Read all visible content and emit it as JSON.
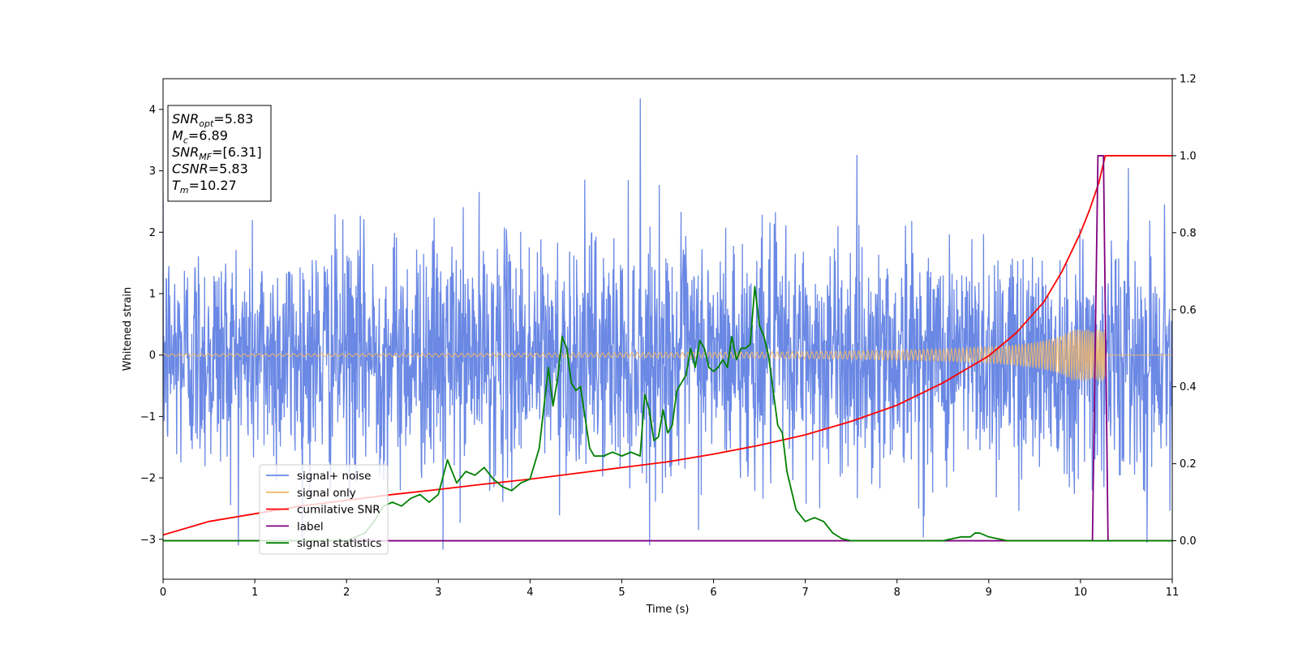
{
  "chart_data": {
    "type": "line",
    "xlabel": "Time (s)",
    "ylabel": "Whitened strain",
    "xlim": [
      0,
      11
    ],
    "ylim_left": [
      -3.65,
      4.5
    ],
    "ylim_right": [
      -0.1,
      1.2
    ],
    "xticks": [
      0,
      1,
      2,
      3,
      4,
      5,
      6,
      7,
      8,
      9,
      10,
      11
    ],
    "yticks_left": [
      -3,
      -2,
      -1,
      0,
      1,
      2,
      3,
      4
    ],
    "yticks_right": [
      0.0,
      0.2,
      0.4,
      0.6,
      0.8,
      1.0,
      1.2
    ],
    "yticks_right_labels": [
      "0.0",
      "0.2",
      "0.4",
      "0.6",
      "0.8",
      "1.0",
      "1.2"
    ],
    "grid": false,
    "legend_position": "lower-left",
    "info_box": {
      "lines": [
        {
          "main": "SNR",
          "sub": "opt",
          "value": "=5.83"
        },
        {
          "main": "M",
          "sub": "c",
          "value": "=6.89"
        },
        {
          "main": "SNR",
          "sub": "MF",
          "value": "=[6.31]"
        },
        {
          "main": "CSNR",
          "sub": "",
          "value": "=5.83"
        },
        {
          "main": "T",
          "sub": "m",
          "value": "=10.27"
        }
      ]
    },
    "series": [
      {
        "name": "signal+ noise",
        "axis": "left",
        "color": "#6a88e4",
        "kind": "noise",
        "std": 0.95,
        "samples": 2600,
        "peak_max": 4.18,
        "peak_min": -3.17
      },
      {
        "name": "signal only",
        "axis": "left",
        "color": "#f2b96a",
        "kind": "chirp",
        "t_merge": 10.27,
        "amp_end": 0.42
      },
      {
        "name": "cumilative SNR",
        "axis": "right",
        "color": "#ff0000",
        "x": [
          0,
          0.5,
          1,
          1.5,
          2,
          2.5,
          3,
          3.5,
          4,
          4.5,
          5,
          5.5,
          6,
          6.5,
          7,
          7.5,
          8,
          8.5,
          9,
          9.3,
          9.6,
          9.8,
          10.0,
          10.1,
          10.2,
          10.27,
          11
        ],
        "y": [
          0.015,
          0.05,
          0.07,
          0.09,
          0.105,
          0.12,
          0.133,
          0.147,
          0.16,
          0.175,
          0.19,
          0.205,
          0.225,
          0.248,
          0.275,
          0.31,
          0.352,
          0.41,
          0.48,
          0.54,
          0.62,
          0.7,
          0.8,
          0.86,
          0.93,
          1.0,
          1.0
        ]
      },
      {
        "name": "label",
        "axis": "right",
        "color": "#800080",
        "x": [
          0,
          10.13,
          10.19,
          10.25,
          10.3,
          11
        ],
        "y": [
          0.0,
          0.0,
          1.0,
          1.0,
          0.0,
          0.0
        ]
      },
      {
        "name": "signal statistics",
        "axis": "right",
        "color": "#008000",
        "x": [
          0,
          2.0,
          2.2,
          2.3,
          2.4,
          2.5,
          2.6,
          2.7,
          2.8,
          2.9,
          3.0,
          3.1,
          3.2,
          3.3,
          3.4,
          3.5,
          3.6,
          3.7,
          3.8,
          3.9,
          4.0,
          4.1,
          4.2,
          4.25,
          4.3,
          4.35,
          4.4,
          4.45,
          4.5,
          4.55,
          4.6,
          4.65,
          4.7,
          4.75,
          4.8,
          4.9,
          5.0,
          5.1,
          5.2,
          5.25,
          5.3,
          5.35,
          5.4,
          5.45,
          5.5,
          5.55,
          5.6,
          5.65,
          5.7,
          5.75,
          5.8,
          5.85,
          5.9,
          5.95,
          6.0,
          6.05,
          6.1,
          6.15,
          6.2,
          6.25,
          6.3,
          6.35,
          6.4,
          6.45,
          6.5,
          6.55,
          6.6,
          6.65,
          6.7,
          6.75,
          6.8,
          6.9,
          7.0,
          7.1,
          7.2,
          7.3,
          7.4,
          7.5,
          7.7,
          8.0,
          8.5,
          8.7,
          8.8,
          8.85,
          8.9,
          9.0,
          9.2,
          9.5,
          10,
          11
        ],
        "y": [
          0.0,
          0.0,
          0.02,
          0.05,
          0.09,
          0.1,
          0.09,
          0.11,
          0.12,
          0.1,
          0.12,
          0.21,
          0.15,
          0.18,
          0.17,
          0.19,
          0.16,
          0.14,
          0.13,
          0.15,
          0.16,
          0.24,
          0.45,
          0.35,
          0.42,
          0.53,
          0.5,
          0.41,
          0.39,
          0.4,
          0.32,
          0.24,
          0.22,
          0.22,
          0.22,
          0.23,
          0.22,
          0.23,
          0.22,
          0.38,
          0.34,
          0.26,
          0.27,
          0.34,
          0.28,
          0.3,
          0.39,
          0.41,
          0.43,
          0.5,
          0.45,
          0.52,
          0.5,
          0.45,
          0.44,
          0.45,
          0.47,
          0.45,
          0.53,
          0.47,
          0.5,
          0.5,
          0.51,
          0.66,
          0.56,
          0.53,
          0.48,
          0.39,
          0.3,
          0.28,
          0.18,
          0.08,
          0.05,
          0.06,
          0.05,
          0.02,
          0.005,
          0.0,
          0.0,
          0.0,
          0.0,
          0.01,
          0.01,
          0.02,
          0.02,
          0.01,
          0.0,
          0.0,
          0.0,
          0.0
        ]
      }
    ]
  }
}
